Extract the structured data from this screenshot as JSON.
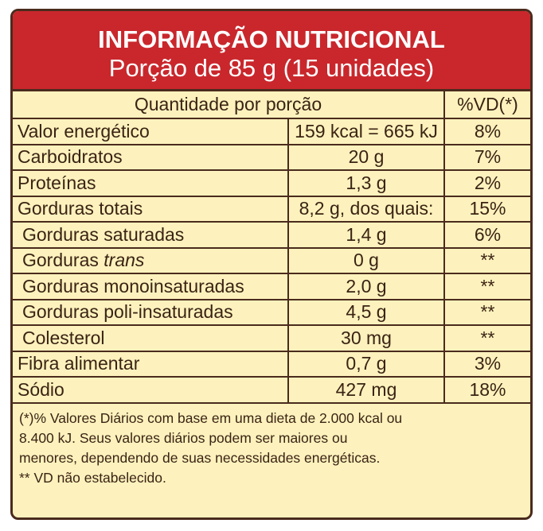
{
  "header": {
    "title": "INFORMAÇÃO NUTRICIONAL",
    "subtitle": "Porção de 85 g (15 unidades)"
  },
  "table": {
    "columns": [
      "Quantidade por porção",
      "%VD(*)"
    ],
    "rows": [
      {
        "name": "Valor energético",
        "amount": "159 kcal = 665 kJ",
        "vd": "8%"
      },
      {
        "name": "Carboidratos",
        "amount": "20 g",
        "vd": "7%"
      },
      {
        "name": "Proteínas",
        "amount": "1,3 g",
        "vd": "2%"
      },
      {
        "name": "Gorduras totais",
        "amount": "8,2 g, dos quais:",
        "vd": "15%"
      },
      {
        "name": "Gorduras saturadas",
        "amount": "1,4 g",
        "vd": "6%"
      },
      {
        "name": "Gorduras",
        "name_italic": "trans",
        "amount": "0 g",
        "vd": "**"
      },
      {
        "name": "Gorduras monoinsaturadas",
        "amount": "2,0 g",
        "vd": "**"
      },
      {
        "name": "Gorduras poli-insaturadas",
        "amount": "4,5 g",
        "vd": "**"
      },
      {
        "name": "Colesterol",
        "amount": "30 mg",
        "vd": "**"
      },
      {
        "name": "Fibra alimentar",
        "amount": "0,7 g",
        "vd": "3%"
      },
      {
        "name": "Sódio",
        "amount": "427 mg",
        "vd": "18%"
      }
    ]
  },
  "footnote": {
    "lines": [
      "(*)% Valores Diários com base em uma dieta de 2.000 kcal ou",
      "8.400 kJ. Seus valores diários podem ser maiores ou",
      "menores, dependendo de suas necessidades energéticas.",
      "** VD não estabelecido."
    ]
  }
}
